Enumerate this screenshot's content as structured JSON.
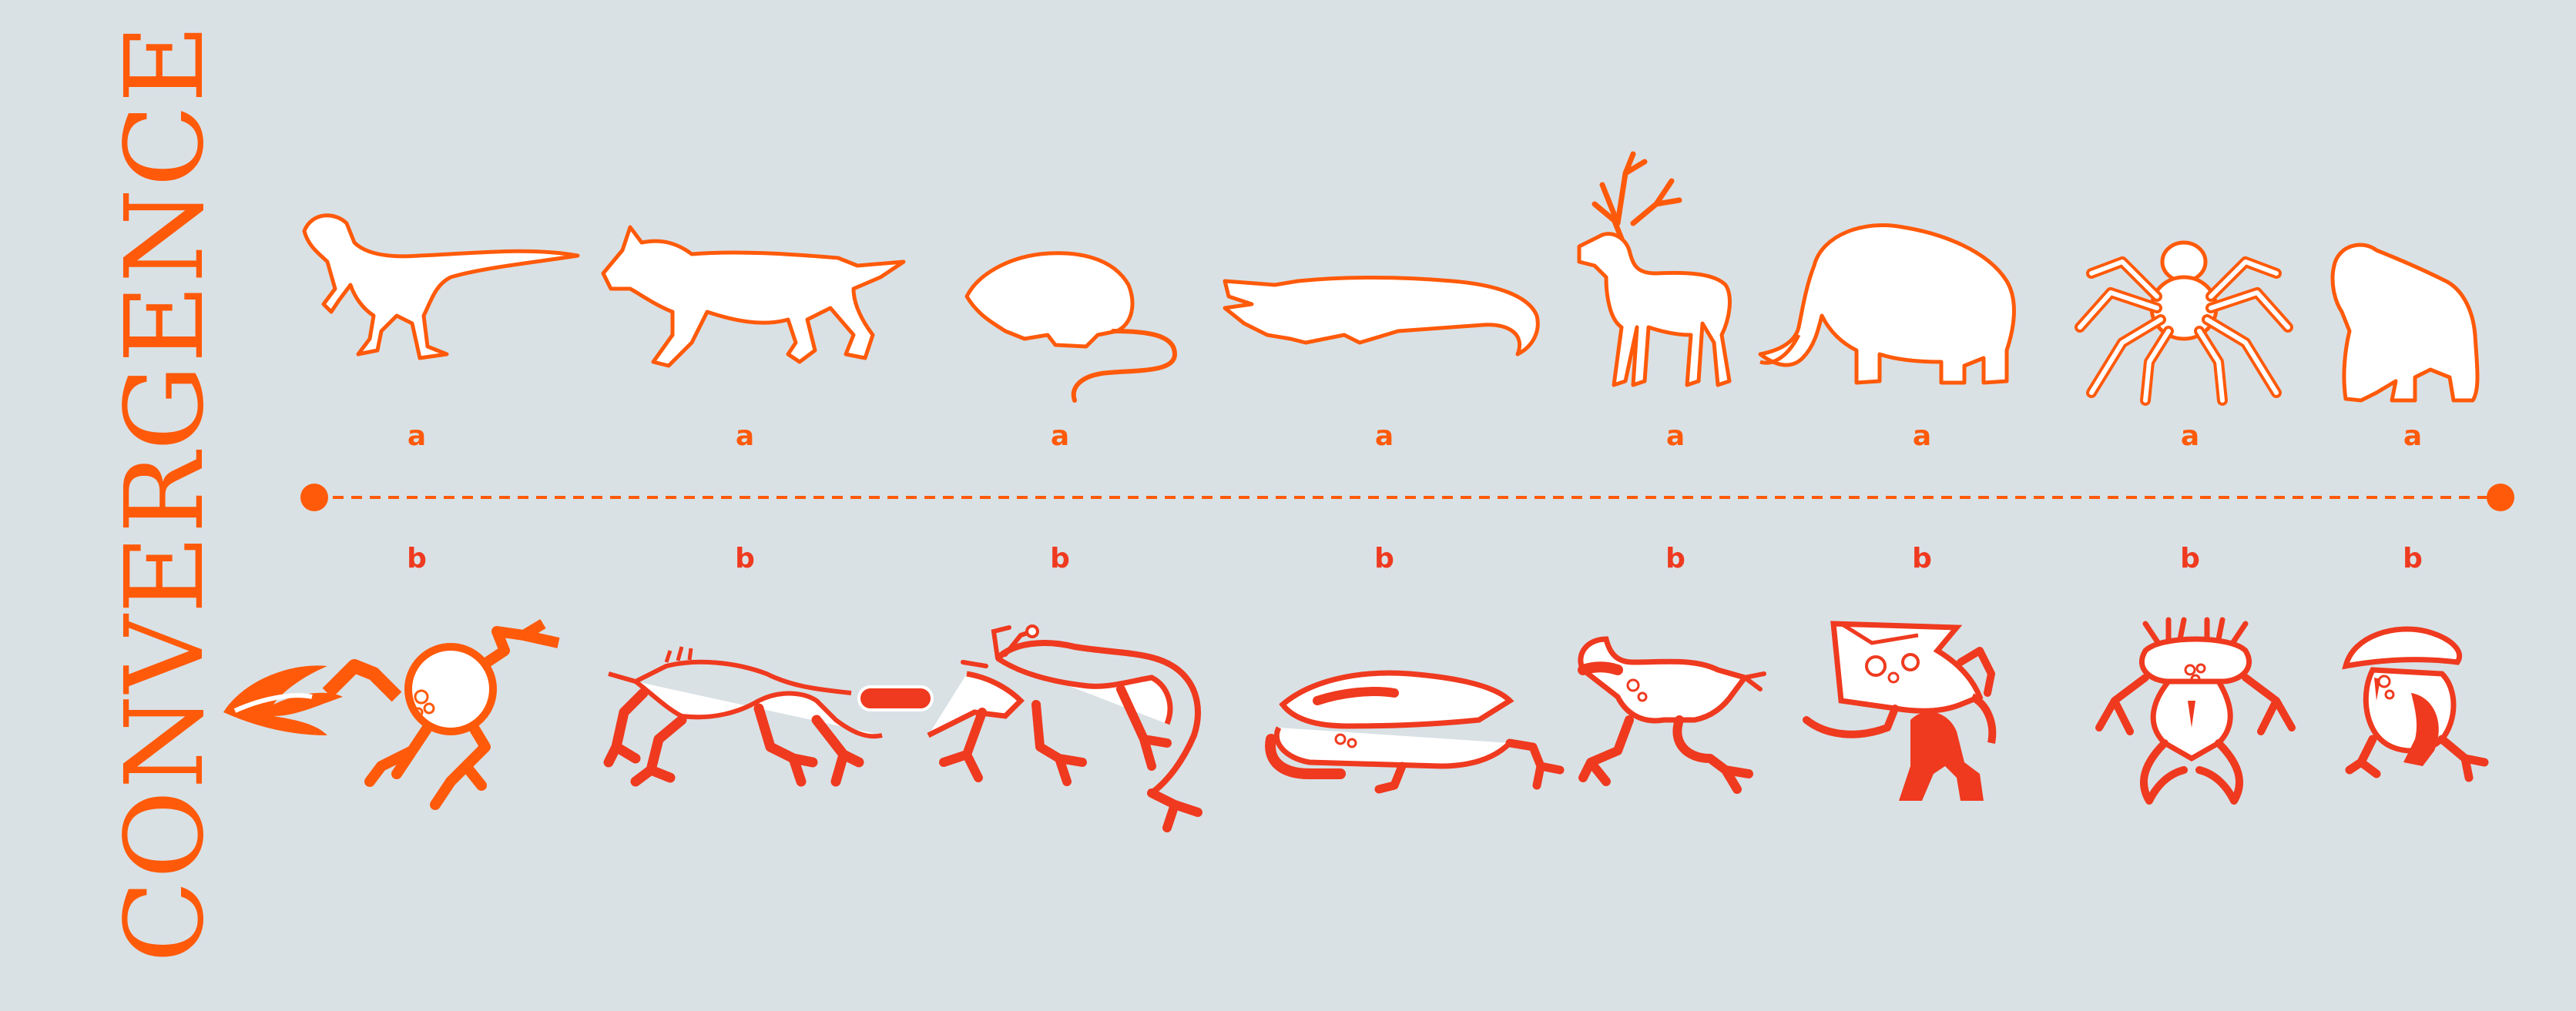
{
  "title": "CONVERGENCE",
  "row_a_label": "a",
  "row_b_label": "b",
  "colors": {
    "background": "#d9e1e5",
    "accent_orange": "#ff5a0a",
    "accent_red": "#ef3a1f",
    "fill_white": "#ffffff"
  },
  "row_a": [
    {
      "label": "a",
      "icon": "raptor-dinosaur-icon"
    },
    {
      "label": "a",
      "icon": "wolf-icon"
    },
    {
      "label": "a",
      "icon": "rat-icon"
    },
    {
      "label": "a",
      "icon": "crocodile-icon"
    },
    {
      "label": "a",
      "icon": "deer-icon"
    },
    {
      "label": "a",
      "icon": "mammoth-icon"
    },
    {
      "label": "a",
      "icon": "spider-icon"
    },
    {
      "label": "a",
      "icon": "gorilla-icon"
    }
  ],
  "row_b": [
    {
      "label": "b",
      "icon": "alien-raptor-creature-icon"
    },
    {
      "label": "b",
      "icon": "alien-wolf-creature-icon"
    },
    {
      "label": "b",
      "icon": "alien-rat-creature-icon"
    },
    {
      "label": "b",
      "icon": "alien-crocodile-creature-icon"
    },
    {
      "label": "b",
      "icon": "alien-deer-creature-icon"
    },
    {
      "label": "b",
      "icon": "alien-mammoth-creature-icon"
    },
    {
      "label": "b",
      "icon": "alien-spider-creature-icon"
    },
    {
      "label": "b",
      "icon": "alien-gorilla-creature-icon"
    }
  ]
}
